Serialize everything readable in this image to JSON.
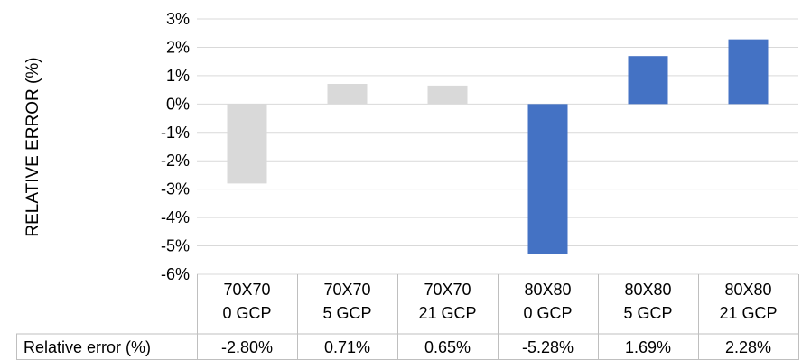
{
  "chart_data": {
    "type": "bar",
    "ylabel": "RELATIVE ERROR (%)",
    "ylim": [
      -6,
      3
    ],
    "yticks": [
      "3%",
      "2%",
      "1%",
      "0%",
      "-1%",
      "-2%",
      "-3%",
      "-4%",
      "-5%",
      "-6%"
    ],
    "grid": true,
    "categories": [
      [
        "70X70",
        "0 GCP"
      ],
      [
        "70X70",
        "5 GCP"
      ],
      [
        "70X70",
        "21 GCP"
      ],
      [
        "80X80",
        "0 GCP"
      ],
      [
        "80X80",
        "5 GCP"
      ],
      [
        "80X80",
        "21 GCP"
      ]
    ],
    "series": [
      {
        "name": "Relative error (%)",
        "values": [
          -2.8,
          0.71,
          0.65,
          -5.28,
          1.69,
          2.28
        ],
        "colors": [
          "#d9d9d9",
          "#d9d9d9",
          "#d9d9d9",
          "#4472c4",
          "#4472c4",
          "#4472c4"
        ]
      }
    ],
    "data_table": {
      "row_label": "Relative error (%)",
      "cells": [
        "-2.80%",
        "0.71%",
        "0.65%",
        "-5.28%",
        "1.69%",
        "2.28%"
      ]
    }
  }
}
